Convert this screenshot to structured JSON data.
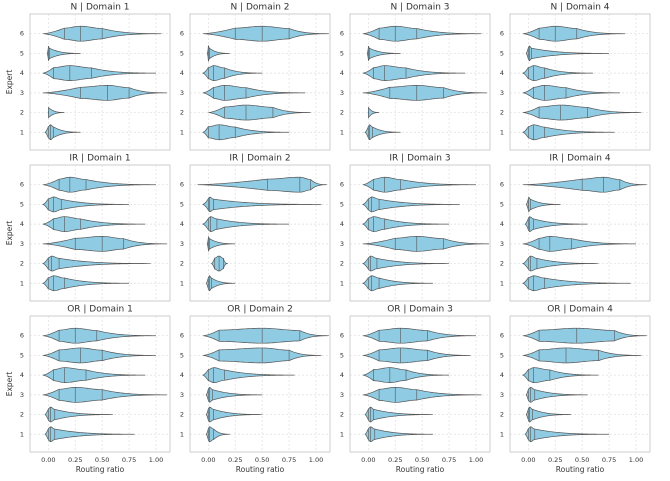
{
  "chart_data": [
    {
      "type": "violin",
      "title": "N | Domain 1",
      "ylabel": "Expert",
      "color": "#8fcbe3",
      "xlim": [
        -0.17,
        1.13
      ],
      "xticks": [
        {
          "value": 0,
          "label": "0.00"
        },
        {
          "value": 0.25,
          "label": "0.25"
        },
        {
          "value": 0.5,
          "label": "0.50"
        },
        {
          "value": 0.75,
          "label": "0.75"
        },
        {
          "value": 1,
          "label": "1.00"
        }
      ],
      "ylim": [
        0.1,
        7.0
      ],
      "yticks": [
        1,
        2,
        3,
        4,
        5,
        6
      ],
      "grid": true,
      "experts": [
        {
          "min": -0.03,
          "q1": 0,
          "median": 0.02,
          "q3": 0.05,
          "max": 0.3
        },
        {
          "min": 0,
          "q1": 0,
          "median": 0,
          "q3": 0,
          "max": 0.15
        },
        {
          "min": -0.05,
          "q1": 0.3,
          "median": 0.55,
          "q3": 0.75,
          "max": 1.1
        },
        {
          "min": -0.05,
          "q1": 0.05,
          "median": 0.2,
          "q3": 0.4,
          "max": 1.0
        },
        {
          "min": -0.01,
          "q1": 0,
          "median": 0,
          "q3": 0.01,
          "max": 0.3
        },
        {
          "min": -0.05,
          "q1": 0.15,
          "median": 0.3,
          "q3": 0.5,
          "max": 1.05
        }
      ]
    },
    {
      "type": "violin",
      "title": "N | Domain 2",
      "color": "#8fcbe3",
      "xlim": [
        -0.17,
        1.13
      ],
      "xticks": [
        {
          "value": 0,
          "label": "0.00"
        },
        {
          "value": 0.25,
          "label": "0.25"
        },
        {
          "value": 0.5,
          "label": "0.50"
        },
        {
          "value": 0.75,
          "label": "0.75"
        },
        {
          "value": 1,
          "label": "1.00"
        }
      ],
      "ylim": [
        0.1,
        7.0
      ],
      "yticks": [
        1,
        2,
        3,
        4,
        5,
        6
      ],
      "grid": true,
      "experts": [
        {
          "min": -0.05,
          "q1": 0,
          "median": 0.1,
          "q3": 0.25,
          "max": 0.75
        },
        {
          "min": 0,
          "q1": 0.15,
          "median": 0.35,
          "q3": 0.6,
          "max": 0.95
        },
        {
          "min": -0.05,
          "q1": 0.05,
          "median": 0.15,
          "q3": 0.35,
          "max": 0.9
        },
        {
          "min": -0.05,
          "q1": 0,
          "median": 0.05,
          "q3": 0.15,
          "max": 0.5
        },
        {
          "min": -0.01,
          "q1": 0,
          "median": 0,
          "q3": 0.01,
          "max": 0.2
        },
        {
          "min": -0.05,
          "q1": 0.25,
          "median": 0.5,
          "q3": 0.75,
          "max": 1.12
        }
      ]
    },
    {
      "type": "violin",
      "title": "N | Domain 3",
      "color": "#8fcbe3",
      "xlim": [
        -0.17,
        1.13
      ],
      "xticks": [
        {
          "value": 0,
          "label": "0.00"
        },
        {
          "value": 0.25,
          "label": "0.25"
        },
        {
          "value": 0.5,
          "label": "0.50"
        },
        {
          "value": 0.75,
          "label": "0.75"
        },
        {
          "value": 1,
          "label": "1.00"
        }
      ],
      "ylim": [
        0.1,
        7.0
      ],
      "yticks": [
        1,
        2,
        3,
        4,
        5,
        6
      ],
      "grid": true,
      "experts": [
        {
          "min": -0.03,
          "q1": 0,
          "median": 0.01,
          "q3": 0.04,
          "max": 0.3
        },
        {
          "min": 0,
          "q1": 0,
          "median": 0,
          "q3": 0,
          "max": 0.1
        },
        {
          "min": -0.05,
          "q1": 0.2,
          "median": 0.45,
          "q3": 0.7,
          "max": 1.1
        },
        {
          "min": -0.05,
          "q1": 0.05,
          "median": 0.15,
          "q3": 0.35,
          "max": 0.9
        },
        {
          "min": -0.01,
          "q1": 0,
          "median": 0,
          "q3": 0.01,
          "max": 0.3
        },
        {
          "min": -0.05,
          "q1": 0.1,
          "median": 0.25,
          "q3": 0.45,
          "max": 1.05
        }
      ]
    },
    {
      "type": "violin",
      "title": "N | Domain 4",
      "color": "#8fcbe3",
      "xlim": [
        -0.17,
        1.13
      ],
      "xticks": [
        {
          "value": 0,
          "label": "0.00"
        },
        {
          "value": 0.25,
          "label": "0.25"
        },
        {
          "value": 0.5,
          "label": "0.50"
        },
        {
          "value": 0.75,
          "label": "0.75"
        },
        {
          "value": 1,
          "label": "1.00"
        }
      ],
      "ylim": [
        0.1,
        7.0
      ],
      "yticks": [
        1,
        2,
        3,
        4,
        5,
        6
      ],
      "grid": true,
      "experts": [
        {
          "min": -0.05,
          "q1": 0,
          "median": 0.05,
          "q3": 0.15,
          "max": 0.8
        },
        {
          "min": -0.05,
          "q1": 0.1,
          "median": 0.3,
          "q3": 0.55,
          "max": 1.05
        },
        {
          "min": -0.05,
          "q1": 0.05,
          "median": 0.15,
          "q3": 0.35,
          "max": 0.85
        },
        {
          "min": -0.05,
          "q1": 0,
          "median": 0.05,
          "q3": 0.15,
          "max": 0.6
        },
        {
          "min": -0.02,
          "q1": 0,
          "median": 0.01,
          "q3": 0.03,
          "max": 0.75
        },
        {
          "min": -0.05,
          "q1": 0.1,
          "median": 0.25,
          "q3": 0.45,
          "max": 0.9
        }
      ]
    },
    {
      "type": "violin",
      "title": "IR | Domain 1",
      "ylabel": "Expert",
      "color": "#8fcbe3",
      "xlim": [
        -0.17,
        1.13
      ],
      "xticks": [
        {
          "value": 0,
          "label": "0.00"
        },
        {
          "value": 0.25,
          "label": "0.25"
        },
        {
          "value": 0.5,
          "label": "0.50"
        },
        {
          "value": 0.75,
          "label": "0.75"
        },
        {
          "value": 1,
          "label": "1.00"
        }
      ],
      "ylim": [
        0.1,
        7.0
      ],
      "yticks": [
        1,
        2,
        3,
        4,
        5,
        6
      ],
      "grid": true,
      "experts": [
        {
          "min": -0.05,
          "q1": 0,
          "median": 0.05,
          "q3": 0.15,
          "max": 0.75
        },
        {
          "min": -0.05,
          "q1": 0,
          "median": 0.03,
          "q3": 0.1,
          "max": 0.95
        },
        {
          "min": -0.05,
          "q1": 0.25,
          "median": 0.5,
          "q3": 0.7,
          "max": 1.1
        },
        {
          "min": -0.05,
          "q1": 0.05,
          "median": 0.15,
          "q3": 0.3,
          "max": 0.9
        },
        {
          "min": -0.05,
          "q1": 0,
          "median": 0.05,
          "q3": 0.12,
          "max": 0.75
        },
        {
          "min": -0.05,
          "q1": 0.1,
          "median": 0.2,
          "q3": 0.35,
          "max": 1.0
        }
      ]
    },
    {
      "type": "violin",
      "title": "IR | Domain 2",
      "color": "#8fcbe3",
      "xlim": [
        -0.17,
        1.13
      ],
      "xticks": [
        {
          "value": 0,
          "label": "0.00"
        },
        {
          "value": 0.25,
          "label": "0.25"
        },
        {
          "value": 0.5,
          "label": "0.50"
        },
        {
          "value": 0.75,
          "label": "0.75"
        },
        {
          "value": 1,
          "label": "1.00"
        }
      ],
      "ylim": [
        0.1,
        7.0
      ],
      "yticks": [
        1,
        2,
        3,
        4,
        5,
        6
      ],
      "grid": true,
      "experts": [
        {
          "min": -0.02,
          "q1": 0,
          "median": 0.01,
          "q3": 0.03,
          "max": 0.25
        },
        {
          "min": 0.03,
          "q1": 0.06,
          "median": 0.1,
          "q3": 0.14,
          "max": 0.18
        },
        {
          "min": -0.01,
          "q1": 0,
          "median": 0,
          "q3": 0.01,
          "max": 0.25
        },
        {
          "min": -0.05,
          "q1": 0,
          "median": 0.02,
          "q3": 0.08,
          "max": 0.75
        },
        {
          "min": -0.05,
          "q1": 0,
          "median": 0.01,
          "q3": 0.05,
          "max": 1.05
        },
        {
          "min": -0.1,
          "q1": 0.55,
          "median": 0.85,
          "q3": 0.95,
          "max": 1.1
        }
      ]
    },
    {
      "type": "violin",
      "title": "IR | Domain 3",
      "color": "#8fcbe3",
      "xlim": [
        -0.17,
        1.13
      ],
      "xticks": [
        {
          "value": 0,
          "label": "0.00"
        },
        {
          "value": 0.25,
          "label": "0.25"
        },
        {
          "value": 0.5,
          "label": "0.50"
        },
        {
          "value": 0.75,
          "label": "0.75"
        },
        {
          "value": 1,
          "label": "1.00"
        }
      ],
      "ylim": [
        0.1,
        7.0
      ],
      "yticks": [
        1,
        2,
        3,
        4,
        5,
        6
      ],
      "grid": true,
      "experts": [
        {
          "min": -0.05,
          "q1": 0,
          "median": 0.03,
          "q3": 0.1,
          "max": 0.6
        },
        {
          "min": -0.05,
          "q1": 0,
          "median": 0.02,
          "q3": 0.08,
          "max": 0.75
        },
        {
          "min": -0.05,
          "q1": 0.25,
          "median": 0.45,
          "q3": 0.7,
          "max": 1.12
        },
        {
          "min": -0.05,
          "q1": 0,
          "median": 0.05,
          "q3": 0.15,
          "max": 0.75
        },
        {
          "min": -0.05,
          "q1": 0,
          "median": 0.03,
          "q3": 0.1,
          "max": 0.85
        },
        {
          "min": -0.05,
          "q1": 0.05,
          "median": 0.15,
          "q3": 0.3,
          "max": 1.0
        }
      ]
    },
    {
      "type": "violin",
      "title": "IR | Domain 4",
      "color": "#8fcbe3",
      "xlim": [
        -0.17,
        1.13
      ],
      "xticks": [
        {
          "value": 0,
          "label": "0.00"
        },
        {
          "value": 0.25,
          "label": "0.25"
        },
        {
          "value": 0.5,
          "label": "0.50"
        },
        {
          "value": 0.75,
          "label": "0.75"
        },
        {
          "value": 1,
          "label": "1.00"
        }
      ],
      "ylim": [
        0.1,
        7.0
      ],
      "yticks": [
        1,
        2,
        3,
        4,
        5,
        6
      ],
      "grid": true,
      "experts": [
        {
          "min": -0.05,
          "q1": 0,
          "median": 0.05,
          "q3": 0.15,
          "max": 0.95
        },
        {
          "min": -0.05,
          "q1": 0,
          "median": 0.02,
          "q3": 0.08,
          "max": 0.65
        },
        {
          "min": -0.05,
          "q1": 0.1,
          "median": 0.2,
          "q3": 0.4,
          "max": 1.0
        },
        {
          "min": -0.03,
          "q1": 0,
          "median": 0.01,
          "q3": 0.05,
          "max": 0.55
        },
        {
          "min": -0.02,
          "q1": 0,
          "median": 0,
          "q3": 0.02,
          "max": 0.3
        },
        {
          "min": -0.05,
          "q1": 0.5,
          "median": 0.7,
          "q3": 0.85,
          "max": 1.1
        }
      ]
    },
    {
      "type": "violin",
      "title": "OR | Domain 1",
      "ylabel": "Expert",
      "xlabel": "Routing ratio",
      "color": "#8fcbe3",
      "xlim": [
        -0.17,
        1.13
      ],
      "xticks": [
        {
          "value": 0,
          "label": "0.00"
        },
        {
          "value": 0.25,
          "label": "0.25"
        },
        {
          "value": 0.5,
          "label": "0.50"
        },
        {
          "value": 0.75,
          "label": "0.75"
        },
        {
          "value": 1,
          "label": "1.00"
        }
      ],
      "ylim": [
        0.1,
        7.0
      ],
      "yticks": [
        1,
        2,
        3,
        4,
        5,
        6
      ],
      "grid": true,
      "experts": [
        {
          "min": -0.03,
          "q1": 0,
          "median": 0.02,
          "q3": 0.06,
          "max": 0.8
        },
        {
          "min": -0.03,
          "q1": 0,
          "median": 0.02,
          "q3": 0.06,
          "max": 0.6
        },
        {
          "min": -0.05,
          "q1": 0.1,
          "median": 0.25,
          "q3": 0.5,
          "max": 1.1
        },
        {
          "min": -0.05,
          "q1": 0.05,
          "median": 0.15,
          "q3": 0.35,
          "max": 0.9
        },
        {
          "min": -0.05,
          "q1": 0.1,
          "median": 0.3,
          "q3": 0.5,
          "max": 1.0
        },
        {
          "min": -0.05,
          "q1": 0.1,
          "median": 0.25,
          "q3": 0.45,
          "max": 1.0
        }
      ]
    },
    {
      "type": "violin",
      "title": "OR | Domain 2",
      "xlabel": "Routing ratio",
      "color": "#8fcbe3",
      "xlim": [
        -0.17,
        1.13
      ],
      "xticks": [
        {
          "value": 0,
          "label": "0.00"
        },
        {
          "value": 0.25,
          "label": "0.25"
        },
        {
          "value": 0.5,
          "label": "0.50"
        },
        {
          "value": 0.75,
          "label": "0.75"
        },
        {
          "value": 1,
          "label": "1.00"
        }
      ],
      "ylim": [
        0.1,
        7.0
      ],
      "yticks": [
        1,
        2,
        3,
        4,
        5,
        6
      ],
      "grid": true,
      "experts": [
        {
          "min": -0.02,
          "q1": 0,
          "median": 0.01,
          "q3": 0.05,
          "max": 0.2
        },
        {
          "min": -0.02,
          "q1": 0,
          "median": 0.01,
          "q3": 0.05,
          "max": 0.5
        },
        {
          "min": -0.02,
          "q1": 0,
          "median": 0.01,
          "q3": 0.04,
          "max": 0.5
        },
        {
          "min": -0.05,
          "q1": 0,
          "median": 0.05,
          "q3": 0.15,
          "max": 0.8
        },
        {
          "min": -0.05,
          "q1": 0.1,
          "median": 0.5,
          "q3": 0.75,
          "max": 1.05
        },
        {
          "min": -0.05,
          "q1": 0.1,
          "median": 0.5,
          "q3": 0.85,
          "max": 1.12
        }
      ]
    },
    {
      "type": "violin",
      "title": "OR | Domain 3",
      "xlabel": "Routing ratio",
      "color": "#8fcbe3",
      "xlim": [
        -0.17,
        1.13
      ],
      "xticks": [
        {
          "value": 0,
          "label": "0.00"
        },
        {
          "value": 0.25,
          "label": "0.25"
        },
        {
          "value": 0.5,
          "label": "0.50"
        },
        {
          "value": 0.75,
          "label": "0.75"
        },
        {
          "value": 1,
          "label": "1.00"
        }
      ],
      "ylim": [
        0.1,
        7.0
      ],
      "yticks": [
        1,
        2,
        3,
        4,
        5,
        6
      ],
      "grid": true,
      "experts": [
        {
          "min": -0.03,
          "q1": 0,
          "median": 0.02,
          "q3": 0.06,
          "max": 0.6
        },
        {
          "min": -0.03,
          "q1": 0,
          "median": 0.02,
          "q3": 0.05,
          "max": 0.6
        },
        {
          "min": -0.05,
          "q1": 0.1,
          "median": 0.25,
          "q3": 0.45,
          "max": 1.05
        },
        {
          "min": -0.05,
          "q1": 0.05,
          "median": 0.2,
          "q3": 0.35,
          "max": 0.75
        },
        {
          "min": -0.05,
          "q1": 0.1,
          "median": 0.3,
          "q3": 0.55,
          "max": 0.95
        },
        {
          "min": -0.05,
          "q1": 0.1,
          "median": 0.3,
          "q3": 0.55,
          "max": 1.0
        }
      ]
    },
    {
      "type": "violin",
      "title": "OR | Domain 4",
      "xlabel": "Routing ratio",
      "color": "#8fcbe3",
      "xlim": [
        -0.17,
        1.13
      ],
      "xticks": [
        {
          "value": 0,
          "label": "0.00"
        },
        {
          "value": 0.25,
          "label": "0.25"
        },
        {
          "value": 0.5,
          "label": "0.50"
        },
        {
          "value": 0.75,
          "label": "0.75"
        },
        {
          "value": 1,
          "label": "1.00"
        }
      ],
      "ylim": [
        0.1,
        7.0
      ],
      "yticks": [
        1,
        2,
        3,
        4,
        5,
        6
      ],
      "grid": true,
      "experts": [
        {
          "min": -0.03,
          "q1": 0,
          "median": 0.02,
          "q3": 0.06,
          "max": 0.75
        },
        {
          "min": -0.02,
          "q1": 0,
          "median": 0.01,
          "q3": 0.04,
          "max": 0.4
        },
        {
          "min": -0.02,
          "q1": 0,
          "median": 0.02,
          "q3": 0.06,
          "max": 0.55
        },
        {
          "min": -0.05,
          "q1": 0,
          "median": 0.05,
          "q3": 0.2,
          "max": 0.65
        },
        {
          "min": -0.05,
          "q1": 0.1,
          "median": 0.35,
          "q3": 0.65,
          "max": 1.05
        },
        {
          "min": -0.05,
          "q1": 0.1,
          "median": 0.45,
          "q3": 0.8,
          "max": 1.1
        }
      ]
    }
  ]
}
